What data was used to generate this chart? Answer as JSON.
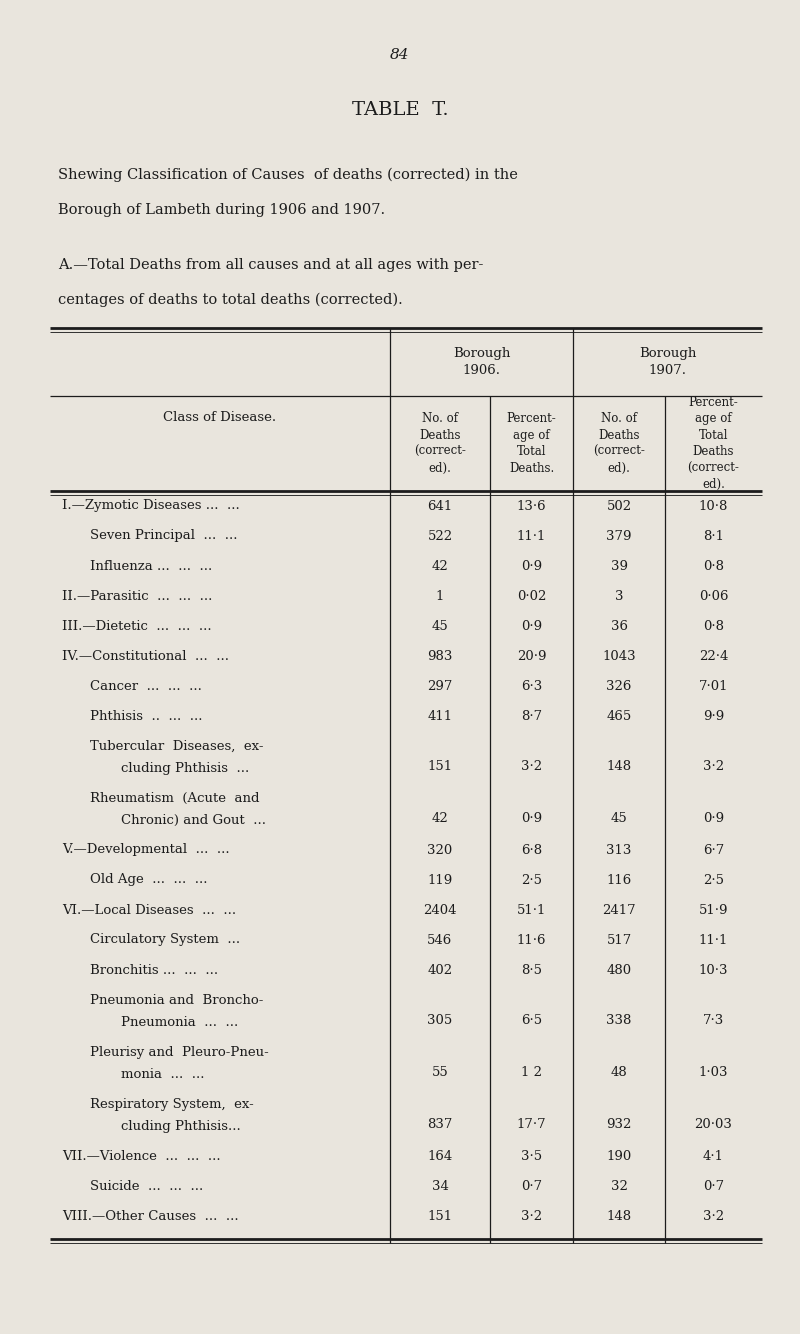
{
  "page_number": "84",
  "title": "TABLE  T.",
  "subtitle_line1": "Shewing Classification of Causes  of deaths (corrected) in the",
  "subtitle_line2": "Borough of Lambeth during 1906 and 1907.",
  "section_line1": "A.—Total Deaths from all causes and at all ages with per-",
  "section_line2": "centages of deaths to total deaths (corrected).",
  "col_header_class": "Class of Disease.",
  "borough_1906": "Borough\n1906.",
  "borough_1907": "Borough\n1907.",
  "subhdr_d1906": "No. of\nDeaths\n(correct-\ned).",
  "subhdr_p1906": "Percent-\nage of\nTotal\nDeaths.",
  "subhdr_d1907": "No. of\nDeaths\n(correct-\ned).",
  "subhdr_p1907": "Percent-\nage of\nTotal\nDeaths\n(correct-\ned).",
  "rows": [
    {
      "label1": "I.—Zymotic Diseases ...",
      "label2": "...",
      "indent": 0,
      "two_line": false,
      "d1906": "641",
      "p1906": "13·6",
      "d1907": "502",
      "p1907": "10·8"
    },
    {
      "label1": "Seven Principal  ...",
      "label2": "...",
      "indent": 1,
      "two_line": false,
      "d1906": "522",
      "p1906": "11·1",
      "d1907": "379",
      "p1907": "8·1"
    },
    {
      "label1": "Influenza ...  ...",
      "label2": "...",
      "indent": 1,
      "two_line": false,
      "d1906": "42",
      "p1906": "0·9",
      "d1907": "39",
      "p1907": "0·8"
    },
    {
      "label1": "II.—Parasitic  ...",
      "label2": "...  ...",
      "indent": 0,
      "two_line": false,
      "d1906": "1",
      "p1906": "0·02",
      "d1907": "3",
      "p1907": "0·06"
    },
    {
      "label1": "III.—Dietetic  ...",
      "label2": "...  ...",
      "indent": 0,
      "two_line": false,
      "d1906": "45",
      "p1906": "0·9",
      "d1907": "36",
      "p1907": "0·8"
    },
    {
      "label1": "IV.—Constitutional  ...",
      "label2": "...",
      "indent": 0,
      "two_line": false,
      "d1906": "983",
      "p1906": "20·9",
      "d1907": "1043",
      "p1907": "22·4"
    },
    {
      "label1": "Cancer  ...",
      "label2": "...  ...",
      "indent": 1,
      "two_line": false,
      "d1906": "297",
      "p1906": "6·3",
      "d1907": "326",
      "p1907": "7·01"
    },
    {
      "label1": "Phthisis  ..",
      "label2": "...  ...",
      "indent": 1,
      "two_line": false,
      "d1906": "411",
      "p1906": "8·7",
      "d1907": "465",
      "p1907": "9·9"
    },
    {
      "label1": "Tubercular  Diseases,  ex-",
      "label2": "    cluding Phthisis  ...",
      "indent": 1,
      "two_line": true,
      "d1906": "151",
      "p1906": "3·2",
      "d1907": "148",
      "p1907": "3·2"
    },
    {
      "label1": "Rheumatism  (Acute  and",
      "label2": "    Chronic) and Gout  ...",
      "indent": 1,
      "two_line": true,
      "d1906": "42",
      "p1906": "0·9",
      "d1907": "45",
      "p1907": "0·9"
    },
    {
      "label1": "V.—Developmental  ...",
      "label2": "...",
      "indent": 0,
      "two_line": false,
      "d1906": "320",
      "p1906": "6·8",
      "d1907": "313",
      "p1907": "6·7"
    },
    {
      "label1": "Old Age  ...",
      "label2": "...  ...",
      "indent": 1,
      "two_line": false,
      "d1906": "119",
      "p1906": "2·5",
      "d1907": "116",
      "p1907": "2·5"
    },
    {
      "label1": "VI.—Local Diseases  ...",
      "label2": "...",
      "indent": 0,
      "two_line": false,
      "d1906": "2404",
      "p1906": "51·1",
      "d1907": "2417",
      "p1907": "51·9"
    },
    {
      "label1": "Circulatory System  ...",
      "label2": "",
      "indent": 1,
      "two_line": false,
      "d1906": "546",
      "p1906": "11·6",
      "d1907": "517",
      "p1907": "11·1"
    },
    {
      "label1": "Bronchitis ...  ...",
      "label2": "...",
      "indent": 1,
      "two_line": false,
      "d1906": "402",
      "p1906": "8·5",
      "d1907": "480",
      "p1907": "10·3"
    },
    {
      "label1": "Pneumonia and  Broncho-",
      "label2": "    Pneumonia  ...  ...",
      "indent": 1,
      "two_line": true,
      "d1906": "305",
      "p1906": "6·5",
      "d1907": "338",
      "p1907": "7·3"
    },
    {
      "label1": "Pleurisy and  Pleuro-Pneu-",
      "label2": "    monia  ...  ...",
      "indent": 1,
      "two_line": true,
      "d1906": "55",
      "p1906": "1 2",
      "d1907": "48",
      "p1907": "1·03"
    },
    {
      "label1": "Respiratory System,  ex-",
      "label2": "    cluding Phthisis...",
      "indent": 1,
      "two_line": true,
      "d1906": "837",
      "p1906": "17·7",
      "d1907": "932",
      "p1907": "20·03"
    },
    {
      "label1": "VII.—Violence  ...",
      "label2": "...  ...",
      "indent": 0,
      "two_line": false,
      "d1906": "164",
      "p1906": "3·5",
      "d1907": "190",
      "p1907": "4·1"
    },
    {
      "label1": "Suicide  ...",
      "label2": "...  ...",
      "indent": 1,
      "two_line": false,
      "d1906": "34",
      "p1906": "0·7",
      "d1907": "32",
      "p1907": "0·7"
    },
    {
      "label1": "VIII.—Other Causes  ...",
      "label2": "...",
      "indent": 0,
      "two_line": false,
      "d1906": "151",
      "p1906": "3·2",
      "d1907": "148",
      "p1907": "3·2"
    }
  ],
  "bg_color": "#e9e5dd",
  "text_color": "#1c1c1c",
  "line_color": "#1c1c1c"
}
